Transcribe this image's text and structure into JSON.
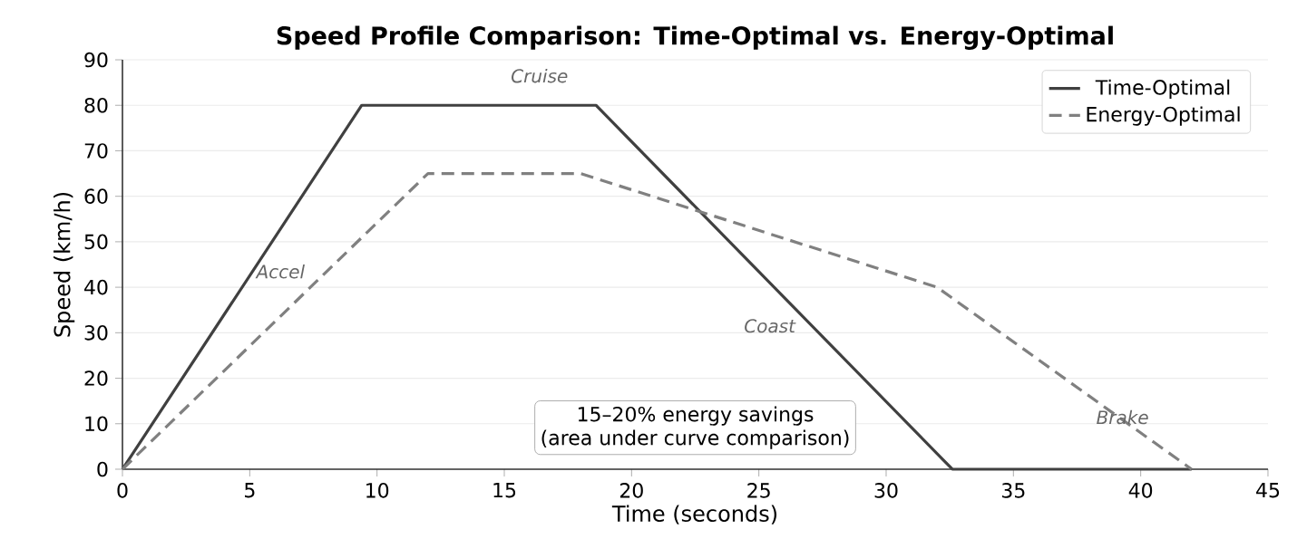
{
  "chart_data": {
    "type": "line",
    "title": "Speed Profile Comparison: Time-Optimal vs. Energy-Optimal",
    "xlabel": "Time (seconds)",
    "ylabel": "Speed (km/h)",
    "xlim": [
      0,
      45
    ],
    "ylim": [
      0,
      90
    ],
    "xticks": [
      0,
      5,
      10,
      15,
      20,
      25,
      30,
      35,
      40,
      45
    ],
    "yticks": [
      0,
      10,
      20,
      30,
      40,
      50,
      60,
      70,
      80,
      90
    ],
    "grid": "y",
    "legend": "top right",
    "series": [
      {
        "name": "Time-Optimal",
        "color": "#404040",
        "line_style": "solid",
        "x": [
          0,
          9.4,
          18.6,
          32.6,
          42
        ],
        "values": [
          0,
          80,
          80,
          0,
          0
        ]
      },
      {
        "name": "Energy-Optimal",
        "color": "#808080",
        "line_style": "dashed",
        "x": [
          0,
          12,
          18,
          32,
          42
        ],
        "values": [
          0,
          65,
          65,
          40,
          0
        ]
      }
    ],
    "annotations": [
      "Cruise",
      "Accel",
      "Coast",
      "Brake",
      "15–20% energy savings",
      "(area under curve comparison)"
    ]
  }
}
